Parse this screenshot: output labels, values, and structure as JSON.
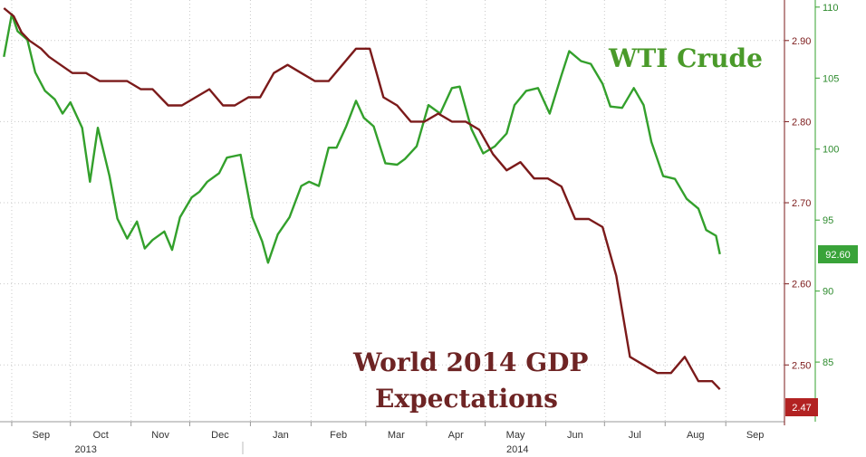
{
  "chart_data": {
    "type": "line",
    "title": "",
    "x_tick_labels": [
      "Sep",
      "Oct",
      "Nov",
      "Dec",
      "Jan",
      "Feb",
      "Mar",
      "Apr",
      "May",
      "Jun",
      "Jul",
      "Aug",
      "Sep"
    ],
    "year_labels": [
      "2013",
      "2014"
    ],
    "axes": {
      "gdp": {
        "ticks": [
          "2.50",
          "2.60",
          "2.70",
          "2.80",
          "2.90"
        ],
        "range": [
          2.43,
          2.95
        ]
      },
      "wti": {
        "ticks": [
          "85",
          "90",
          "95",
          "100",
          "105",
          "110"
        ],
        "range": [
          80.8,
          110.5
        ]
      }
    },
    "series": [
      {
        "name": "WTI Crude",
        "axis": "wti",
        "color": "#33a02c",
        "last_value": "92.60",
        "x": [
          "2013-08-28",
          "2013-09-01",
          "2013-09-04",
          "2013-09-09",
          "2013-09-13",
          "2013-09-18",
          "2013-09-23",
          "2013-09-27",
          "2013-10-01",
          "2013-10-07",
          "2013-10-11",
          "2013-10-15",
          "2013-10-21",
          "2013-10-25",
          "2013-10-30",
          "2013-11-04",
          "2013-11-08",
          "2013-11-12",
          "2013-11-18",
          "2013-11-22",
          "2013-11-26",
          "2013-12-02",
          "2013-12-06",
          "2013-12-10",
          "2013-12-16",
          "2013-12-20",
          "2013-12-27",
          "2014-01-02",
          "2014-01-07",
          "2014-01-10",
          "2014-01-15",
          "2014-01-21",
          "2014-01-27",
          "2014-01-31",
          "2014-02-05",
          "2014-02-10",
          "2014-02-14",
          "2014-02-19",
          "2014-02-24",
          "2014-02-28",
          "2014-03-05",
          "2014-03-11",
          "2014-03-17",
          "2014-03-21",
          "2014-03-27",
          "2014-04-02",
          "2014-04-08",
          "2014-04-14",
          "2014-04-18",
          "2014-04-24",
          "2014-04-30",
          "2014-05-06",
          "2014-05-12",
          "2014-05-16",
          "2014-05-22",
          "2014-05-28",
          "2014-06-03",
          "2014-06-09",
          "2014-06-13",
          "2014-06-19",
          "2014-06-24",
          "2014-06-30",
          "2014-07-04",
          "2014-07-10",
          "2014-07-16",
          "2014-07-21",
          "2014-07-25",
          "2014-07-31",
          "2014-08-06",
          "2014-08-12",
          "2014-08-18",
          "2014-08-22",
          "2014-08-27",
          "2014-08-29"
        ],
        "values": [
          106.5,
          109.5,
          108.3,
          107.7,
          105.4,
          104.1,
          103.5,
          102.5,
          103.3,
          101.5,
          97.7,
          101.5,
          98.1,
          95.1,
          93.7,
          94.9,
          93.0,
          93.6,
          94.2,
          92.9,
          95.2,
          96.6,
          97.0,
          97.7,
          98.3,
          99.4,
          99.6,
          95.2,
          93.5,
          92.0,
          94.0,
          95.2,
          97.4,
          97.7,
          97.4,
          100.1,
          100.1,
          101.6,
          103.4,
          102.2,
          101.6,
          99.0,
          98.9,
          99.3,
          100.2,
          103.1,
          102.5,
          104.3,
          104.4,
          101.4,
          99.7,
          100.2,
          101.1,
          103.1,
          104.1,
          104.3,
          102.5,
          105.2,
          106.9,
          106.2,
          106.0,
          104.6,
          103.0,
          102.9,
          104.3,
          103.1,
          100.5,
          98.1,
          97.9,
          96.5,
          95.8,
          94.3,
          93.9,
          92.6
        ]
      },
      {
        "name": "World 2014 GDP Expectations",
        "axis": "gdp",
        "color": "#7b1a1a",
        "last_value": "2.47",
        "x": [
          "2013-08-28",
          "2013-09-02",
          "2013-09-06",
          "2013-09-10",
          "2013-09-16",
          "2013-09-20",
          "2013-09-26",
          "2013-10-02",
          "2013-10-09",
          "2013-10-16",
          "2013-10-22",
          "2013-10-30",
          "2013-11-06",
          "2013-11-12",
          "2013-11-20",
          "2013-11-27",
          "2013-12-04",
          "2013-12-11",
          "2013-12-18",
          "2013-12-24",
          "2013-12-31",
          "2014-01-06",
          "2014-01-13",
          "2014-01-20",
          "2014-01-27",
          "2014-02-03",
          "2014-02-10",
          "2014-02-17",
          "2014-02-24",
          "2014-03-03",
          "2014-03-10",
          "2014-03-17",
          "2014-03-24",
          "2014-03-31",
          "2014-04-07",
          "2014-04-14",
          "2014-04-21",
          "2014-04-28",
          "2014-05-05",
          "2014-05-12",
          "2014-05-19",
          "2014-05-26",
          "2014-06-02",
          "2014-06-09",
          "2014-06-16",
          "2014-06-23",
          "2014-06-30",
          "2014-07-07",
          "2014-07-14",
          "2014-07-21",
          "2014-07-28",
          "2014-08-04",
          "2014-08-11",
          "2014-08-18",
          "2014-08-25",
          "2014-08-29"
        ],
        "values": [
          2.94,
          2.93,
          2.91,
          2.9,
          2.89,
          2.88,
          2.87,
          2.86,
          2.86,
          2.85,
          2.85,
          2.85,
          2.84,
          2.84,
          2.82,
          2.82,
          2.83,
          2.84,
          2.82,
          2.82,
          2.83,
          2.83,
          2.86,
          2.87,
          2.86,
          2.85,
          2.85,
          2.87,
          2.89,
          2.89,
          2.83,
          2.82,
          2.8,
          2.8,
          2.81,
          2.8,
          2.8,
          2.79,
          2.76,
          2.74,
          2.75,
          2.73,
          2.73,
          2.72,
          2.68,
          2.68,
          2.67,
          2.61,
          2.51,
          2.5,
          2.49,
          2.49,
          2.51,
          2.48,
          2.48,
          2.47
        ]
      }
    ]
  },
  "labels": {
    "wti": "WTI Crude",
    "gdp_line1": "World 2014 GDP",
    "gdp_line2": "Expectations"
  }
}
